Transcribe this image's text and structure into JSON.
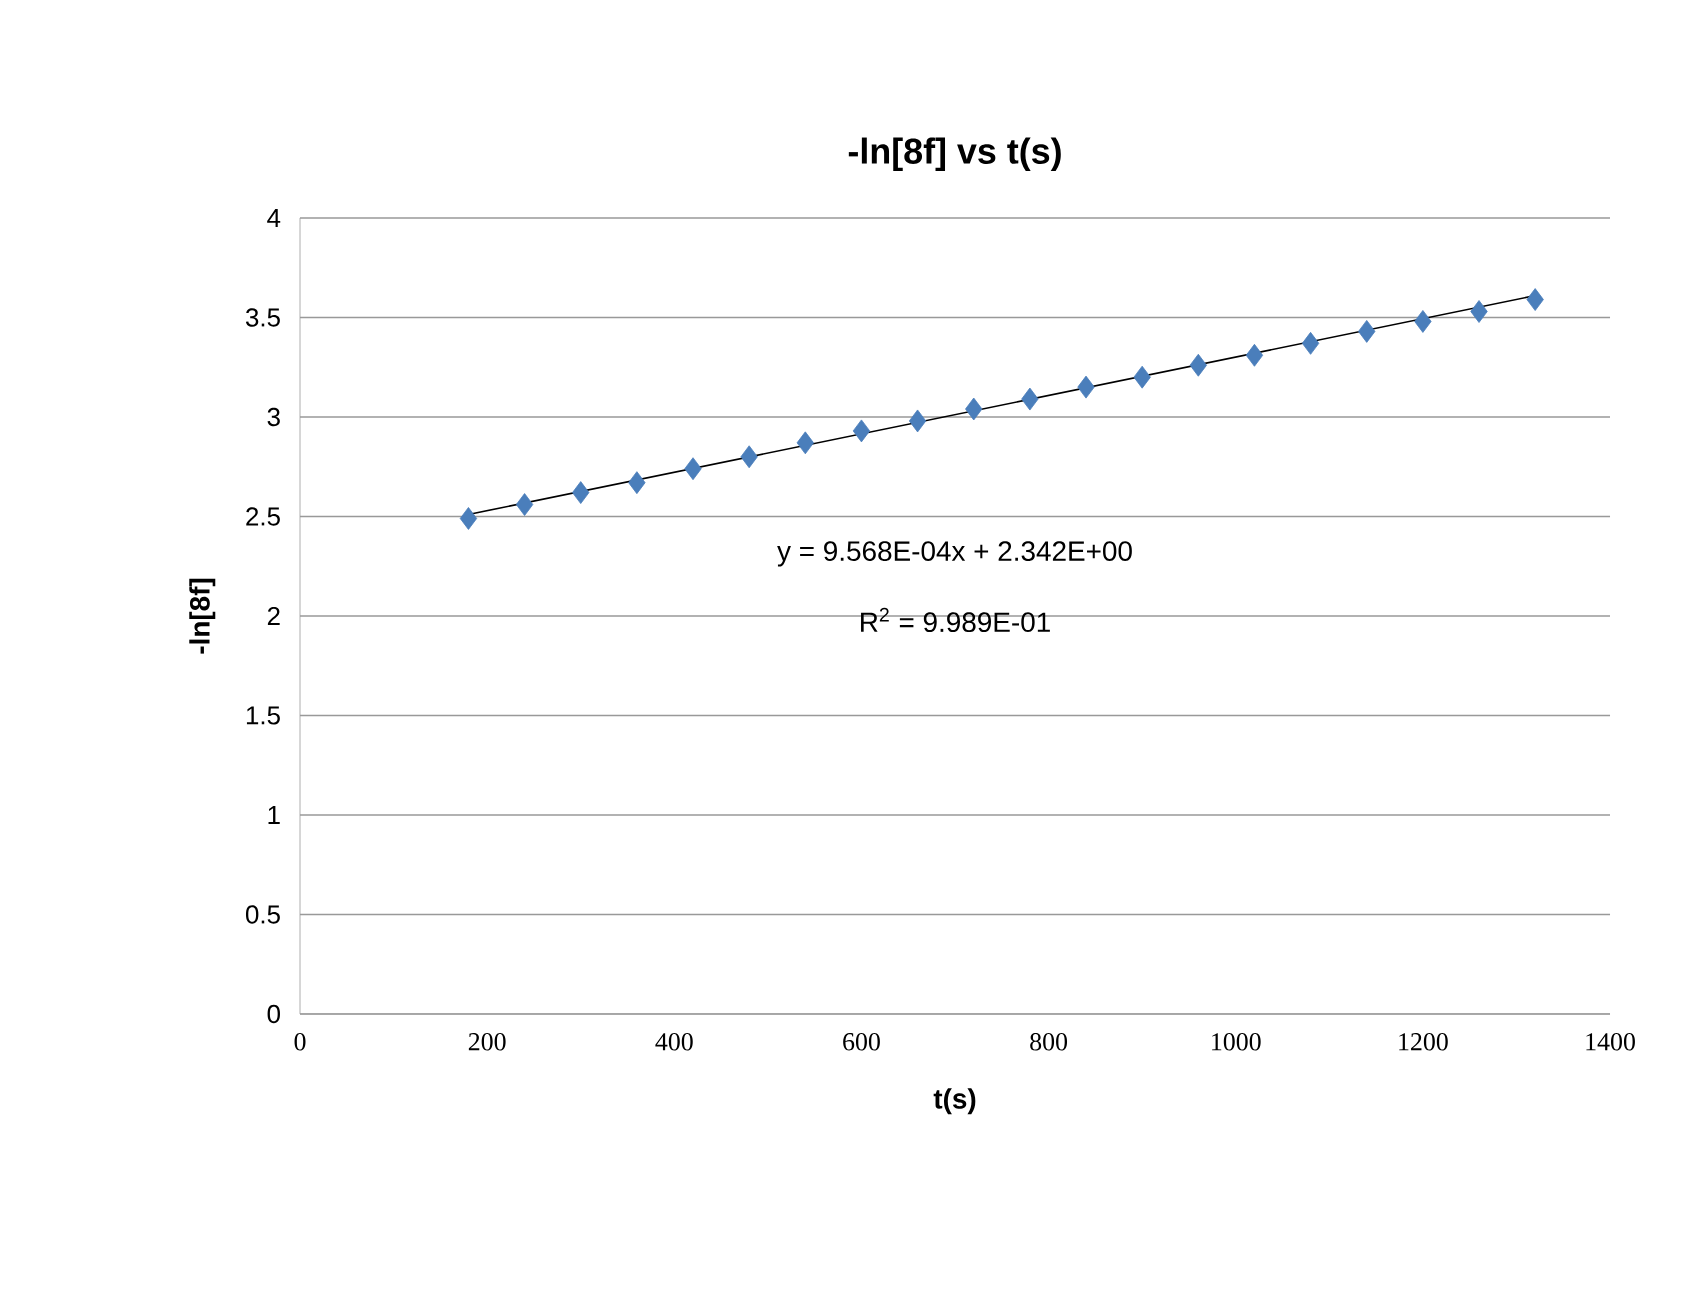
{
  "chart_data": {
    "type": "scatter",
    "title": "-ln[8f] vs t(s)",
    "xlabel": "t(s)",
    "ylabel": "-ln[8f]",
    "xlim": [
      0,
      1400
    ],
    "xticks": [
      0,
      200,
      400,
      600,
      800,
      1000,
      1200,
      1400
    ],
    "ylim": [
      0,
      4
    ],
    "yticks": [
      0,
      0.5,
      1,
      1.5,
      2,
      2.5,
      3,
      3.5,
      4
    ],
    "grid": "y",
    "marker": "diamond",
    "series": [
      {
        "color": "#4a7ebb",
        "x": [
          180,
          240,
          300,
          360,
          420,
          480,
          540,
          600,
          660,
          720,
          780,
          840,
          900,
          960,
          1020,
          1080,
          1140,
          1200,
          1260,
          1320
        ],
        "values": [
          2.49,
          2.56,
          2.62,
          2.67,
          2.74,
          2.8,
          2.87,
          2.93,
          2.98,
          3.04,
          3.09,
          3.15,
          3.2,
          3.26,
          3.31,
          3.37,
          3.43,
          3.48,
          3.53,
          3.59
        ]
      },
      {
        "type": "line",
        "marker": "none",
        "color": "#000000",
        "x": [
          180,
          1320
        ],
        "values": [
          2.51,
          3.61
        ]
      }
    ],
    "annotations": [
      "y = 9.568E-04x + 2.342E+00",
      "R$^{2}$ = 9.989E-01"
    ]
  }
}
